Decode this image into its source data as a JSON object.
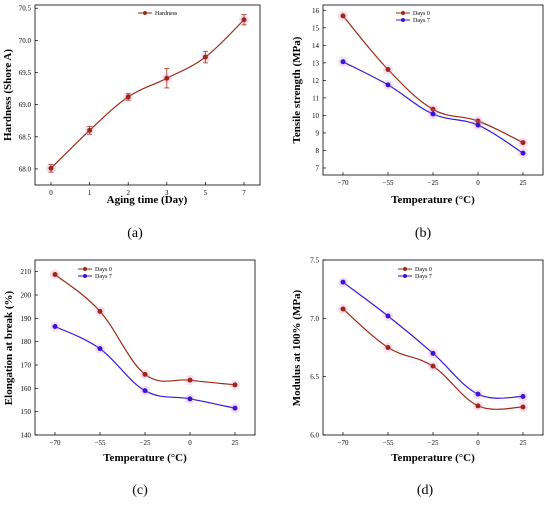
{
  "colors": {
    "red": "#9b2a12",
    "blue": "#3318d6",
    "axis": "#000000",
    "errorbar": "#e07ad0"
  },
  "chart_data": [
    {
      "panel": "(a)",
      "type": "line",
      "title": "",
      "xlabel": "Aging time (Day)",
      "ylabel": "Hardness (Shore A)",
      "categories": [
        "0",
        "1",
        "2",
        "3",
        "5",
        "7"
      ],
      "ylim": [
        67.75,
        70.55
      ],
      "yticks": [
        "68.0",
        "68.5",
        "69.0",
        "69.5",
        "70.0",
        "70.5"
      ],
      "legend_position": "top-center",
      "series": [
        {
          "name": "Hardness",
          "color": "#9b2a12",
          "values": [
            68.01,
            68.6,
            69.12,
            69.41,
            69.74,
            70.32
          ],
          "errors": [
            0.06,
            0.06,
            0.05,
            0.15,
            0.09,
            0.08
          ]
        }
      ]
    },
    {
      "panel": "(b)",
      "type": "line",
      "title": "",
      "xlabel": "Temperature (°C)",
      "ylabel": "Tensile strength (MPa)",
      "categories": [
        "−70",
        "−55",
        "−25",
        "0",
        "25"
      ],
      "ylim": [
        6.6,
        16.3
      ],
      "yticks": [
        "7",
        "8",
        "9",
        "10",
        "11",
        "12",
        "13",
        "14",
        "15",
        "16"
      ],
      "legend_position": "top-center",
      "series": [
        {
          "name": "Days 0",
          "color": "#9b2a12",
          "values": [
            15.68,
            12.62,
            10.35,
            9.68,
            8.45
          ]
        },
        {
          "name": "Days 7",
          "color": "#3318d6",
          "values": [
            13.06,
            11.74,
            10.08,
            9.45,
            7.85
          ]
        }
      ]
    },
    {
      "panel": "(c)",
      "type": "line",
      "title": "",
      "xlabel": "Temperature (°C)",
      "ylabel": "Elongation at break (%)",
      "categories": [
        "−70",
        "−55",
        "−25",
        "0",
        "25"
      ],
      "ylim": [
        140,
        215
      ],
      "yticks": [
        "140",
        "150",
        "160",
        "170",
        "180",
        "190",
        "200",
        "210"
      ],
      "legend_position": "top-left",
      "series": [
        {
          "name": "Days 0",
          "color": "#9b2a12",
          "values": [
            208.8,
            193.0,
            166.0,
            163.5,
            161.5
          ]
        },
        {
          "name": "Days 7",
          "color": "#3318d6",
          "values": [
            186.5,
            177.0,
            159.0,
            155.5,
            151.5
          ]
        }
      ]
    },
    {
      "panel": "(d)",
      "type": "line",
      "title": "",
      "xlabel": "Temperature (°C)",
      "ylabel": "Modulus at 100% (MPa)",
      "categories": [
        "−70",
        "−55",
        "−25",
        "0",
        "25"
      ],
      "ylim": [
        6.0,
        7.5
      ],
      "yticks": [
        "6.0",
        "6.5",
        "7.0",
        "7.5"
      ],
      "legend_position": "top-center",
      "series": [
        {
          "name": "Days 0",
          "color": "#9b2a12",
          "values": [
            7.08,
            6.75,
            6.59,
            6.25,
            6.24
          ]
        },
        {
          "name": "Days 7",
          "color": "#3318d6",
          "values": [
            7.31,
            7.02,
            6.7,
            6.35,
            6.33
          ]
        }
      ]
    }
  ]
}
